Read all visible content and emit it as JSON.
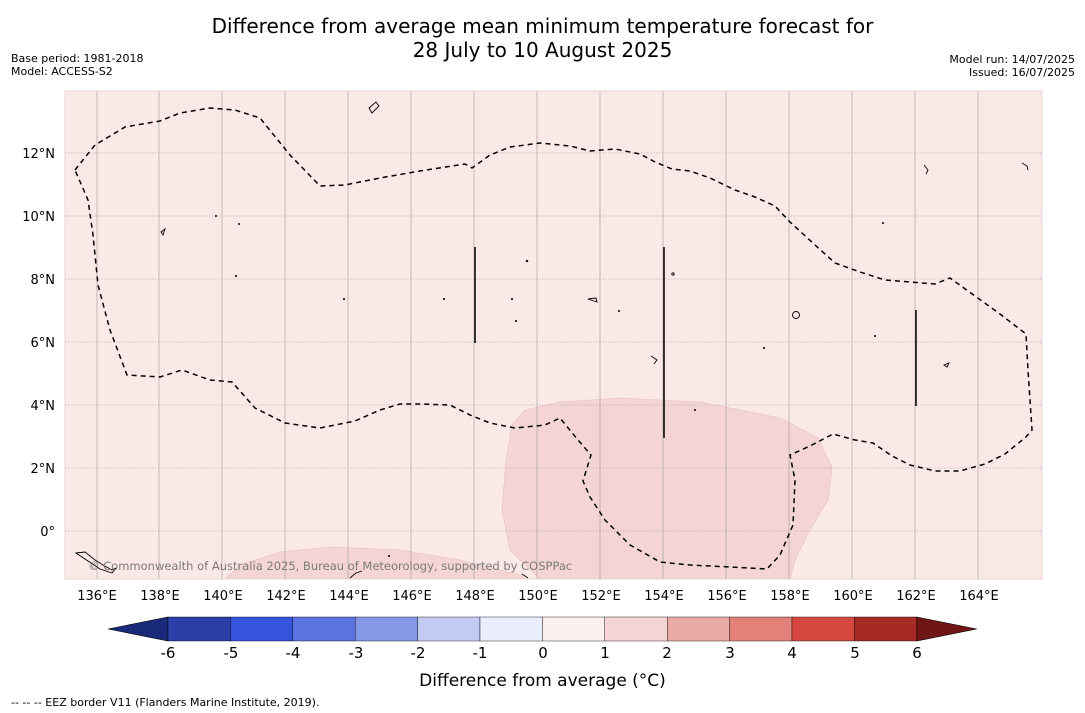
{
  "title_line1": "Difference from average mean minimum temperature forecast for",
  "title_line2": "28 July to 10 August 2025",
  "meta_left": [
    "Base period: 1981-2018",
    "Model: ACCESS-S2"
  ],
  "meta_right": [
    "Model run: 14/07/2025",
    "Issued: 16/07/2025"
  ],
  "map": {
    "lon_ticks": [
      "136°E",
      "138°E",
      "140°E",
      "142°E",
      "144°E",
      "146°E",
      "148°E",
      "150°E",
      "152°E",
      "154°E",
      "156°E",
      "158°E",
      "160°E",
      "162°E",
      "164°E"
    ],
    "lat_ticks": [
      "12°N",
      "10°N",
      "8°N",
      "6°N",
      "4°N",
      "2°N",
      "0°"
    ],
    "copyright": "© Commonwealth of Australia 2025, Bureau of Meteorology, supported by COSPPac",
    "background_color": "#fbe9e8",
    "anomaly_color": "#f4d5d3"
  },
  "colorbar": {
    "labels": [
      "-6",
      "-5",
      "-4",
      "-3",
      "-2",
      "-1",
      "0",
      "1",
      "2",
      "3",
      "4",
      "5",
      "6"
    ],
    "colors": [
      "#1a2a7a",
      "#2a3fa8",
      "#3553db",
      "#5a73e0",
      "#8598e8",
      "#c3cbf2",
      "#eaedfb",
      "#fdf1f0",
      "#f4d5d3",
      "#eaaaa5",
      "#e4807a",
      "#d6473f",
      "#a82a25",
      "#6e1714"
    ],
    "label": "Difference from average (°C)"
  },
  "footnote": "-- -- -- EEZ border V11 (Flanders Marine Institute, 2019)."
}
